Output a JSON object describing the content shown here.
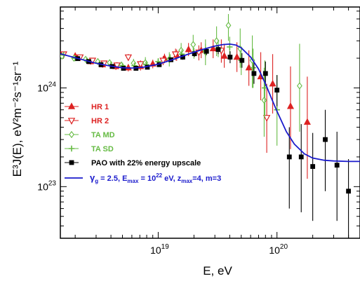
{
  "chart_data": {
    "type": "scatter",
    "xlabel": "E, eV",
    "ylabel": "E³J(E), eV²m⁻²s⁻¹sr⁻¹",
    "x_scale": "log",
    "y_scale": "log",
    "xlim": [
      1.5e+18,
      5e+20
    ],
    "ylim": [
      3e+22,
      6.6e+24
    ],
    "x_ticks": [
      {
        "value": 1e+19,
        "base": "10",
        "exp": "19"
      },
      {
        "value": 1e+20,
        "base": "10",
        "exp": "20"
      }
    ],
    "y_ticks": [
      {
        "value": 1e+23,
        "base": "10",
        "exp": "23"
      },
      {
        "value": 1e+24,
        "base": "10",
        "exp": "24"
      }
    ],
    "legend": {
      "placement": "bottom-left"
    },
    "series": [
      {
        "name": "HR 1",
        "color": "#dd2222",
        "marker": "triangle-filled",
        "points": [
          {
            "x": 2e+18,
            "y": 2.1e+24,
            "lo": 1.95e+24,
            "hi": 2.25e+24
          },
          {
            "x": 2.7e+18,
            "y": 1.85e+24,
            "lo": 1.72e+24,
            "hi": 1.98e+24
          },
          {
            "x": 3.4e+18,
            "y": 1.72e+24,
            "lo": 1.6e+24,
            "hi": 1.85e+24
          },
          {
            "x": 4.4e+18,
            "y": 1.65e+24,
            "lo": 1.52e+24,
            "hi": 1.78e+24
          },
          {
            "x": 5.6e+18,
            "y": 1.6e+24,
            "lo": 1.47e+24,
            "hi": 1.73e+24
          },
          {
            "x": 7.1e+18,
            "y": 1.65e+24,
            "lo": 1.5e+24,
            "hi": 1.8e+24
          },
          {
            "x": 9e+18,
            "y": 1.75e+24,
            "lo": 1.58e+24,
            "hi": 1.93e+24
          },
          {
            "x": 1.13e+19,
            "y": 2e+24,
            "lo": 1.78e+24,
            "hi": 2.22e+24
          },
          {
            "x": 1.43e+19,
            "y": 2.15e+24,
            "lo": 1.88e+24,
            "hi": 2.45e+24
          },
          {
            "x": 1.8e+19,
            "y": 2.45e+24,
            "lo": 2.1e+24,
            "hi": 2.85e+24
          },
          {
            "x": 2.3e+19,
            "y": 2.4e+24,
            "lo": 2e+24,
            "hi": 2.9e+24
          },
          {
            "x": 2.9e+19,
            "y": 2.5e+24,
            "lo": 2e+24,
            "hi": 3.1e+24
          },
          {
            "x": 3.6e+19,
            "y": 2.1e+24,
            "lo": 1.6e+24,
            "hi": 2.8e+24
          },
          {
            "x": 4.6e+19,
            "y": 2.05e+24,
            "lo": 1.45e+24,
            "hi": 2.9e+24
          },
          {
            "x": 5.8e+19,
            "y": 1.6e+24,
            "lo": 1.05e+24,
            "hi": 2.4e+24
          },
          {
            "x": 7.3e+19,
            "y": 1.3e+24,
            "lo": 7.5e+23,
            "hi": 2.3e+24
          },
          {
            "x": 9.2e+19,
            "y": 1.1e+24,
            "lo": 5.5e+23,
            "hi": 2.2e+24
          },
          {
            "x": 1.3e+20,
            "y": 6.5e+23,
            "lo": 2.4e+23,
            "hi": 1.65e+24
          },
          {
            "x": 1.8e+20,
            "y": 4.5e+23,
            "lo": 1.2e+23,
            "hi": 1.3e+24
          }
        ]
      },
      {
        "name": "HR 2",
        "color": "#dd2222",
        "marker": "triangle-down-open",
        "points": [
          {
            "x": 1.6e+18,
            "y": 2.2e+24,
            "lo": 2.1e+24,
            "hi": 2.3e+24
          },
          {
            "x": 2.2e+18,
            "y": 2.05e+24,
            "lo": 1.95e+24,
            "hi": 2.15e+24
          },
          {
            "x": 2.8e+18,
            "y": 1.9e+24,
            "lo": 1.8e+24,
            "hi": 2e+24
          },
          {
            "x": 3.5e+18,
            "y": 1.78e+24,
            "lo": 1.68e+24,
            "hi": 1.88e+24
          },
          {
            "x": 4.5e+18,
            "y": 1.7e+24,
            "lo": 1.58e+24,
            "hi": 1.82e+24
          },
          {
            "x": 5.6e+18,
            "y": 2.05e+24,
            "lo": 1.9e+24,
            "hi": 2.2e+24
          },
          {
            "x": 7.1e+18,
            "y": 1.75e+24,
            "lo": 1.6e+24,
            "hi": 1.9e+24
          },
          {
            "x": 1.1e+19,
            "y": 1.9e+24,
            "lo": 1.7e+24,
            "hi": 2.1e+24
          },
          {
            "x": 1.4e+19,
            "y": 2.2e+24,
            "lo": 1.9e+24,
            "hi": 2.5e+24
          },
          {
            "x": 2.2e+19,
            "y": 2.3e+24,
            "lo": 1.9e+24,
            "hi": 2.7e+24
          },
          {
            "x": 3.4e+19,
            "y": 2.4e+24,
            "lo": 1.8e+24,
            "hi": 3.1e+24
          },
          {
            "x": 8.2e+19,
            "y": 5e+23,
            "lo": 2.2e+23,
            "hi": 1.1e+24
          }
        ]
      },
      {
        "name": "TA MD",
        "color": "#66bb44",
        "marker": "diamond-open",
        "points": [
          {
            "x": 1.55e+18,
            "y": 2.1e+24,
            "lo": 1.98e+24,
            "hi": 2.22e+24
          },
          {
            "x": 1.95e+18,
            "y": 2e+24,
            "lo": 1.88e+24,
            "hi": 2.12e+24
          },
          {
            "x": 2.45e+18,
            "y": 1.95e+24,
            "lo": 1.83e+24,
            "hi": 2.07e+24
          },
          {
            "x": 3.1e+18,
            "y": 1.85e+24,
            "lo": 1.73e+24,
            "hi": 1.97e+24
          },
          {
            "x": 3.9e+18,
            "y": 1.8e+24,
            "lo": 1.67e+24,
            "hi": 1.93e+24
          },
          {
            "x": 4.9e+18,
            "y": 1.7e+24,
            "lo": 1.55e+24,
            "hi": 1.85e+24
          },
          {
            "x": 6.2e+18,
            "y": 1.78e+24,
            "lo": 1.6e+24,
            "hi": 1.97e+24
          },
          {
            "x": 7.8e+18,
            "y": 1.8e+24,
            "lo": 1.58e+24,
            "hi": 2.05e+24
          },
          {
            "x": 1.24e+19,
            "y": 1.95e+24,
            "lo": 1.65e+24,
            "hi": 2.3e+24
          },
          {
            "x": 1.56e+19,
            "y": 2.4e+24,
            "lo": 2e+24,
            "hi": 2.85e+24
          },
          {
            "x": 1.97e+19,
            "y": 2.75e+24,
            "lo": 2.15e+24,
            "hi": 3.45e+24
          },
          {
            "x": 2.5e+19,
            "y": 2.3e+24,
            "lo": 1.7e+24,
            "hi": 3.1e+24
          },
          {
            "x": 3.1e+19,
            "y": 3e+24,
            "lo": 2.1e+24,
            "hi": 4.2e+24
          },
          {
            "x": 3.9e+19,
            "y": 4.3e+24,
            "lo": 3e+24,
            "hi": 5.6e+24
          },
          {
            "x": 4.9e+19,
            "y": 2.5e+24,
            "lo": 1.6e+24,
            "hi": 4e+24
          },
          {
            "x": 6.2e+19,
            "y": 1.9e+24,
            "lo": 1e+24,
            "hi": 3.4e+24
          },
          {
            "x": 7.8e+19,
            "y": 7.5e+23,
            "lo": 3.2e+23,
            "hi": 1.6e+24
          },
          {
            "x": 1.55e+20,
            "y": 1.05e+24,
            "lo": 3.6e+23,
            "hi": 2.8e+24
          }
        ]
      },
      {
        "name": "TA SD",
        "color": "#66bb44",
        "marker": "plus",
        "points": [
          {
            "x": 1.6e+18,
            "y": 2.15e+24,
            "lo": 2.05e+24,
            "hi": 2.25e+24
          },
          {
            "x": 2e+18,
            "y": 2e+24,
            "lo": 1.9e+24,
            "hi": 2.1e+24
          },
          {
            "x": 2.5e+18,
            "y": 1.9e+24,
            "lo": 1.8e+24,
            "hi": 2e+24
          },
          {
            "x": 3.2e+18,
            "y": 1.78e+24,
            "lo": 1.68e+24,
            "hi": 1.88e+24
          },
          {
            "x": 4e+18,
            "y": 1.72e+24,
            "lo": 1.62e+24,
            "hi": 1.82e+24
          },
          {
            "x": 5e+18,
            "y": 1.68e+24,
            "lo": 1.58e+24,
            "hi": 1.78e+24
          },
          {
            "x": 6.3e+18,
            "y": 1.68e+24,
            "lo": 1.57e+24,
            "hi": 1.8e+24
          },
          {
            "x": 7.9e+18,
            "y": 1.72e+24,
            "lo": 1.6e+24,
            "hi": 1.85e+24
          },
          {
            "x": 1e+19,
            "y": 1.85e+24,
            "lo": 1.7e+24,
            "hi": 2e+24
          },
          {
            "x": 1.26e+19,
            "y": 2e+24,
            "lo": 1.82e+24,
            "hi": 2.2e+24
          },
          {
            "x": 1.58e+19,
            "y": 2.2e+24,
            "lo": 1.98e+24,
            "hi": 2.45e+24
          },
          {
            "x": 2e+19,
            "y": 2.25e+24,
            "lo": 1.98e+24,
            "hi": 2.55e+24
          },
          {
            "x": 2.5e+19,
            "y": 2.4e+24,
            "lo": 2.05e+24,
            "hi": 2.8e+24
          },
          {
            "x": 3.2e+19,
            "y": 2.5e+24,
            "lo": 2.05e+24,
            "hi": 3.05e+24
          },
          {
            "x": 4e+19,
            "y": 2.6e+24,
            "lo": 2.05e+24,
            "hi": 3.3e+24
          },
          {
            "x": 5e+19,
            "y": 1.9e+24,
            "lo": 1.35e+24,
            "hi": 2.6e+24
          },
          {
            "x": 6.3e+19,
            "y": 1.6e+24,
            "lo": 1e+24,
            "hi": 2.5e+24
          },
          {
            "x": 7.9e+19,
            "y": 1e+24,
            "lo": 5.2e+23,
            "hi": 1.9e+24
          },
          {
            "x": 1e+20,
            "y": 6e+23,
            "lo": 2.6e+23,
            "hi": 1.35e+24
          }
        ]
      },
      {
        "name": "PAO with 22% energy upscale",
        "color": "#000000",
        "marker": "square-filled",
        "points": [
          {
            "x": 2.1e+18,
            "y": 1.98e+24,
            "lo": 1.92e+24,
            "hi": 2.04e+24
          },
          {
            "x": 2.6e+18,
            "y": 1.85e+24,
            "lo": 1.79e+24,
            "hi": 1.91e+24
          },
          {
            "x": 3.3e+18,
            "y": 1.72e+24,
            "lo": 1.66e+24,
            "hi": 1.78e+24
          },
          {
            "x": 4.1e+18,
            "y": 1.65e+24,
            "lo": 1.59e+24,
            "hi": 1.71e+24
          },
          {
            "x": 5.1e+18,
            "y": 1.58e+24,
            "lo": 1.52e+24,
            "hi": 1.64e+24
          },
          {
            "x": 6.5e+18,
            "y": 1.58e+24,
            "lo": 1.52e+24,
            "hi": 1.64e+24
          },
          {
            "x": 8.1e+18,
            "y": 1.62e+24,
            "lo": 1.55e+24,
            "hi": 1.69e+24
          },
          {
            "x": 1.02e+19,
            "y": 1.72e+24,
            "lo": 1.64e+24,
            "hi": 1.8e+24
          },
          {
            "x": 1.28e+19,
            "y": 1.93e+24,
            "lo": 1.83e+24,
            "hi": 2.03e+24
          },
          {
            "x": 1.61e+19,
            "y": 2.05e+24,
            "lo": 1.93e+24,
            "hi": 2.17e+24
          },
          {
            "x": 2.02e+19,
            "y": 2.22e+24,
            "lo": 2.07e+24,
            "hi": 2.37e+24
          },
          {
            "x": 2.55e+19,
            "y": 2.35e+24,
            "lo": 2.15e+24,
            "hi": 2.55e+24
          },
          {
            "x": 3.2e+19,
            "y": 2.45e+24,
            "lo": 2.2e+24,
            "hi": 2.72e+24
          },
          {
            "x": 4.03e+19,
            "y": 2.05e+24,
            "lo": 1.78e+24,
            "hi": 2.35e+24
          },
          {
            "x": 5.07e+19,
            "y": 1.9e+24,
            "lo": 1.6e+24,
            "hi": 2.25e+24
          },
          {
            "x": 6.4e+19,
            "y": 1.4e+24,
            "lo": 1.1e+24,
            "hi": 1.8e+24
          },
          {
            "x": 8e+19,
            "y": 1.4e+24,
            "lo": 1.05e+24,
            "hi": 1.85e+24
          },
          {
            "x": 1e+20,
            "y": 9.5e+23,
            "lo": 6.5e+23,
            "hi": 1.35e+24
          },
          {
            "x": 1.27e+20,
            "y": 2e+23,
            "lo": 6e+22,
            "hi": 4e+23
          },
          {
            "x": 1.6e+20,
            "y": 2e+23,
            "lo": 5.5e+22,
            "hi": 4.3e+23
          },
          {
            "x": 2e+20,
            "y": 1.6e+23,
            "lo": 4.5e+22,
            "hi": 3.5e+23
          },
          {
            "x": 2.55e+20,
            "y": 3e+23,
            "lo": 9e+22,
            "hi": 6e+23
          },
          {
            "x": 3.2e+20,
            "y": 1.65e+23,
            "lo": 4.5e+22,
            "hi": 3.6e+23
          },
          {
            "x": 4e+20,
            "y": 9e+22,
            "lo": 3e+22,
            "hi": 1.9e+23
          }
        ]
      }
    ],
    "curve": {
      "color": "#1a1acc",
      "label": {
        "gamma": "γ",
        "gamma_sub": "g",
        "gamma_val": " = 2.5, E",
        "emax_sub": "max",
        "emax_val": " = 10",
        "emax_exp": "22",
        "z_text": " eV, z",
        "z_sub": "max",
        "z_val": "=4, m=3"
      },
      "points": [
        [
          1.5e+18,
          2.22e+24
        ],
        [
          2e+18,
          2.02e+24
        ],
        [
          3e+18,
          1.78e+24
        ],
        [
          4e+18,
          1.66e+24
        ],
        [
          5e+18,
          1.6e+24
        ],
        [
          6e+18,
          1.59e+24
        ],
        [
          7.5e+18,
          1.62e+24
        ],
        [
          1e+19,
          1.74e+24
        ],
        [
          1.3e+19,
          1.92e+24
        ],
        [
          1.6e+19,
          2.1e+24
        ],
        [
          2e+19,
          2.3e+24
        ],
        [
          2.5e+19,
          2.5e+24
        ],
        [
          3e+19,
          2.65e+24
        ],
        [
          3.5e+19,
          2.75e+24
        ],
        [
          4e+19,
          2.78e+24
        ],
        [
          4.5e+19,
          2.72e+24
        ],
        [
          5e+19,
          2.55e+24
        ],
        [
          6e+19,
          2.05e+24
        ],
        [
          7e+19,
          1.55e+24
        ],
        [
          8e+19,
          1.1e+24
        ],
        [
          9e+19,
          7.8e+23
        ],
        [
          1e+20,
          5.8e+23
        ],
        [
          1.2e+20,
          3.6e+23
        ],
        [
          1.4e+20,
          2.7e+23
        ],
        [
          1.7e+20,
          2.15e+23
        ],
        [
          2e+20,
          1.95e+23
        ],
        [
          2.5e+20,
          1.85e+23
        ],
        [
          3e+20,
          1.82e+23
        ],
        [
          4e+20,
          1.8e+23
        ],
        [
          5e+20,
          1.8e+23
        ]
      ]
    }
  }
}
